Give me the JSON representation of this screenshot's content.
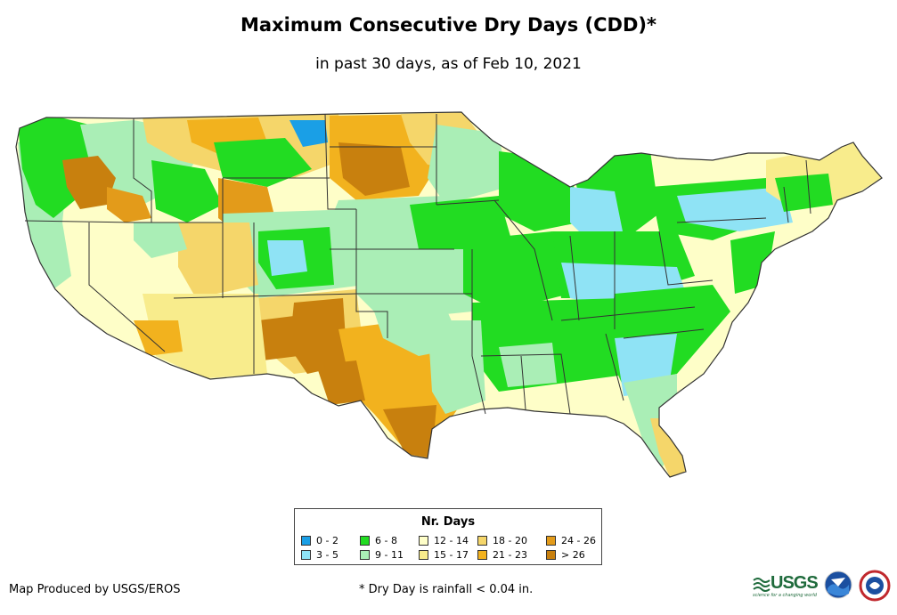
{
  "title": "Maximum Consecutive Dry Days (CDD)*",
  "subtitle": "in past 30 days, as of Feb 10, 2021",
  "legend": {
    "title": "Nr. Days",
    "items": [
      {
        "label": "0 - 2",
        "color": "#1a9fe6"
      },
      {
        "label": "3 - 5",
        "color": "#8fe3f5"
      },
      {
        "label": "6 - 8",
        "color": "#22dc22"
      },
      {
        "label": "9 - 11",
        "color": "#aaeeb6"
      },
      {
        "label": "12 - 14",
        "color": "#fefec8"
      },
      {
        "label": "15 - 17",
        "color": "#f8ec8c"
      },
      {
        "label": "18 - 20",
        "color": "#f5d66a"
      },
      {
        "label": "21 - 23",
        "color": "#f2b21e"
      },
      {
        "label": "24 - 26",
        "color": "#e39b1a"
      },
      {
        "label": "> 26",
        "color": "#c8800e"
      }
    ]
  },
  "credit": "Map Produced by USGS/EROS",
  "footnote": "* Dry Day is rainfall < 0.04 in.",
  "logos": {
    "usgs": "USGS",
    "usgs_tagline": "science for a changing world"
  }
}
